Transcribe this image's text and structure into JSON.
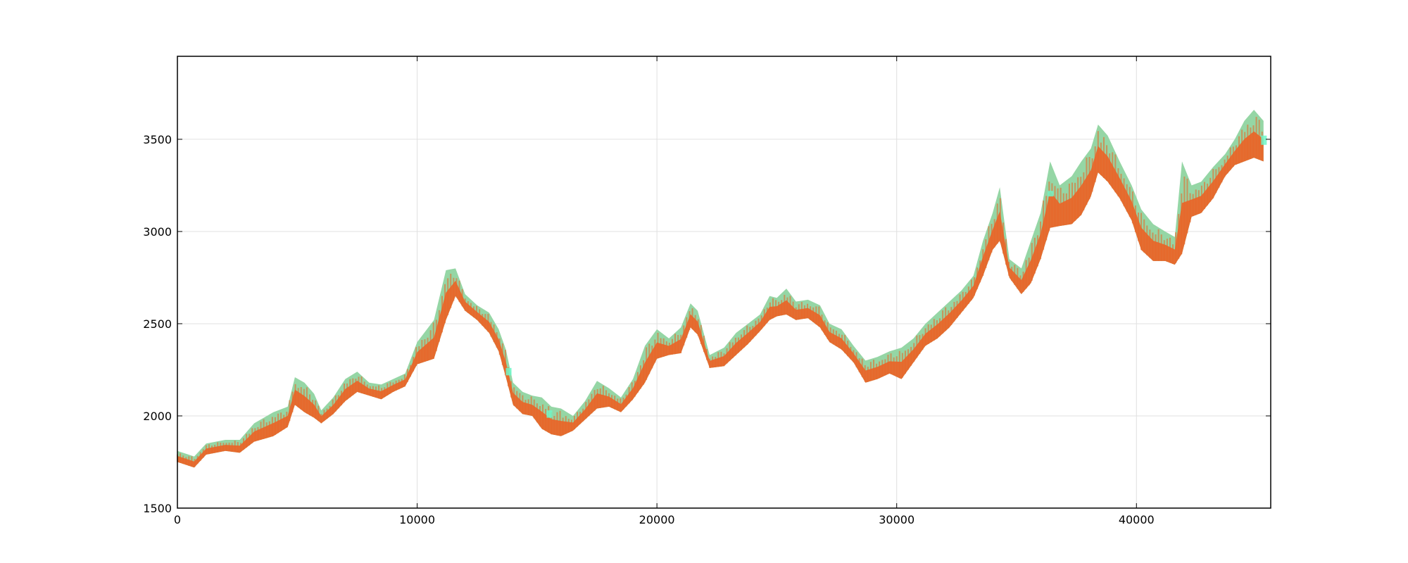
{
  "chart_data": {
    "type": "line",
    "title": "",
    "xlabel": "",
    "ylabel": "",
    "xlim": [
      0,
      45600
    ],
    "ylim": [
      1500,
      3950
    ],
    "x_ticks": [
      0,
      10000,
      20000,
      30000,
      40000
    ],
    "y_ticks": [
      1500,
      2000,
      2500,
      3000,
      3500
    ],
    "grid": true,
    "legend": "none",
    "colors": {
      "upper_band": "#8fd4a0",
      "lower_band": "#e8672a",
      "highlight": "#6ef7c8"
    },
    "series": [
      {
        "role": "upper-band",
        "x": [
          0,
          700,
          1200,
          2000,
          2600,
          3200,
          4000,
          4600,
          4900,
          5300,
          5700,
          6000,
          6500,
          7000,
          7500,
          8000,
          8500,
          9000,
          9500,
          10000,
          10700,
          11200,
          11600,
          12000,
          12500,
          13000,
          13400,
          13700,
          14000,
          14400,
          14800,
          15200,
          15600,
          16000,
          16500,
          17000,
          17500,
          18000,
          18500,
          19000,
          19500,
          20000,
          20500,
          21000,
          21400,
          21700,
          22200,
          22800,
          23300,
          23800,
          24300,
          24700,
          25000,
          25400,
          25800,
          26300,
          26800,
          27200,
          27700,
          28200,
          28700,
          29200,
          29700,
          30200,
          30700,
          31200,
          31700,
          32200,
          32700,
          33200,
          33600,
          34000,
          34300,
          34700,
          35200,
          35600,
          36000,
          36400,
          36800,
          37300,
          37700,
          38100,
          38400,
          38800,
          39300,
          39800,
          40200,
          40700,
          41200,
          41600,
          41900,
          42300,
          42700,
          43200,
          43700,
          44100,
          44500,
          44900,
          45300
        ],
        "values": [
          1810,
          1780,
          1850,
          1870,
          1870,
          1960,
          2020,
          2050,
          2210,
          2180,
          2120,
          2030,
          2100,
          2200,
          2240,
          2180,
          2170,
          2200,
          2230,
          2400,
          2520,
          2790,
          2800,
          2660,
          2600,
          2560,
          2470,
          2360,
          2180,
          2130,
          2110,
          2100,
          2050,
          2040,
          2000,
          2080,
          2190,
          2150,
          2100,
          2200,
          2380,
          2470,
          2420,
          2480,
          2610,
          2570,
          2330,
          2370,
          2450,
          2500,
          2550,
          2650,
          2640,
          2690,
          2620,
          2630,
          2600,
          2500,
          2470,
          2380,
          2300,
          2320,
          2350,
          2370,
          2420,
          2500,
          2560,
          2620,
          2680,
          2760,
          2950,
          3100,
          3240,
          2850,
          2800,
          2950,
          3100,
          3380,
          3250,
          3300,
          3380,
          3450,
          3580,
          3520,
          3380,
          3250,
          3120,
          3040,
          3000,
          2970,
          3380,
          3250,
          3270,
          3350,
          3420,
          3500,
          3600,
          3660,
          3600
        ]
      },
      {
        "role": "lower-band",
        "x": [
          0,
          700,
          1200,
          2000,
          2600,
          3200,
          4000,
          4600,
          4900,
          5300,
          5700,
          6000,
          6500,
          7000,
          7500,
          8000,
          8500,
          9000,
          9500,
          10000,
          10700,
          11200,
          11600,
          12000,
          12500,
          13000,
          13400,
          13700,
          14000,
          14400,
          14800,
          15200,
          15600,
          16000,
          16500,
          17000,
          17500,
          18000,
          18500,
          19000,
          19500,
          20000,
          20500,
          21000,
          21400,
          21700,
          22200,
          22800,
          23300,
          23800,
          24300,
          24700,
          25000,
          25400,
          25800,
          26300,
          26800,
          27200,
          27700,
          28200,
          28700,
          29200,
          29700,
          30200,
          30700,
          31200,
          31700,
          32200,
          32700,
          33200,
          33600,
          34000,
          34300,
          34700,
          35200,
          35600,
          36000,
          36400,
          36800,
          37300,
          37700,
          38100,
          38400,
          38800,
          39300,
          39800,
          40200,
          40700,
          41200,
          41600,
          41900,
          42300,
          42700,
          43200,
          43700,
          44100,
          44500,
          44900,
          45300
        ],
        "values": [
          1750,
          1720,
          1790,
          1810,
          1800,
          1860,
          1890,
          1940,
          2060,
          2020,
          1990,
          1960,
          2010,
          2080,
          2130,
          2110,
          2090,
          2130,
          2160,
          2280,
          2310,
          2520,
          2650,
          2570,
          2520,
          2450,
          2350,
          2210,
          2060,
          2010,
          2000,
          1930,
          1900,
          1890,
          1920,
          1980,
          2040,
          2050,
          2020,
          2090,
          2180,
          2310,
          2330,
          2340,
          2480,
          2440,
          2260,
          2270,
          2330,
          2390,
          2460,
          2520,
          2540,
          2550,
          2520,
          2530,
          2480,
          2400,
          2360,
          2290,
          2180,
          2200,
          2230,
          2200,
          2290,
          2380,
          2420,
          2480,
          2560,
          2640,
          2760,
          2900,
          2950,
          2750,
          2660,
          2720,
          2850,
          3020,
          3030,
          3040,
          3090,
          3190,
          3320,
          3270,
          3180,
          3060,
          2900,
          2840,
          2840,
          2820,
          2880,
          3080,
          3100,
          3180,
          3300,
          3360,
          3380,
          3400,
          3380
        ]
      }
    ]
  }
}
